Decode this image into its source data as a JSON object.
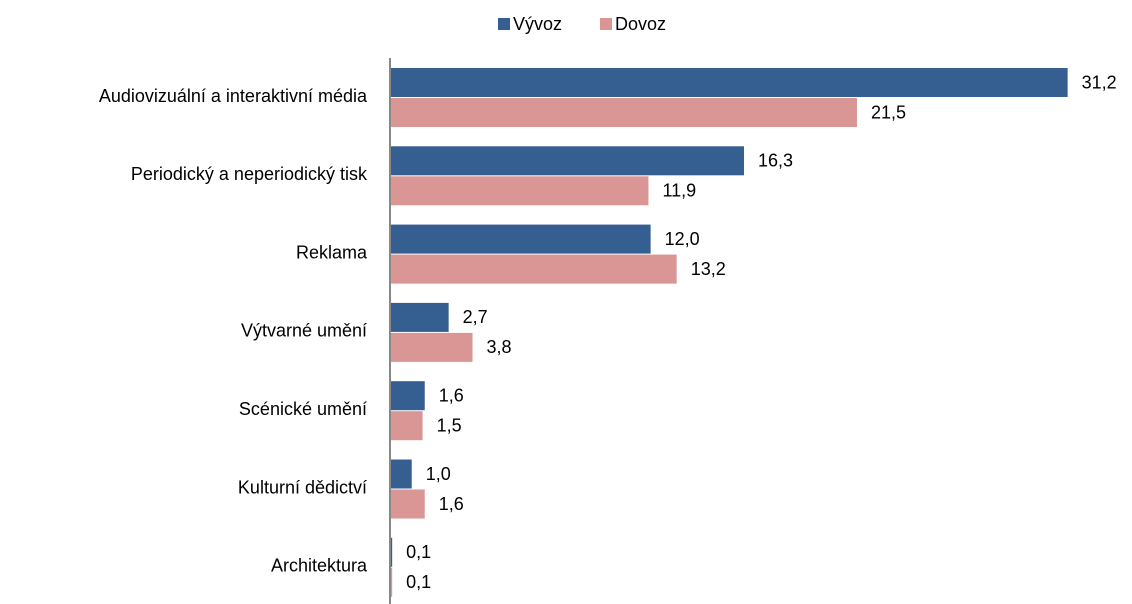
{
  "chart_data": {
    "type": "hbar",
    "categories": [
      "Audiovizuální a interaktivní média",
      "Periodický a neperiodický tisk",
      "Reklama",
      "Výtvarné umění",
      "Scénické umění",
      "Kulturní dědictví",
      "Architektura"
    ],
    "series": [
      {
        "name": "Vývoz",
        "color": "#365f91",
        "values": [
          31.2,
          16.3,
          12.0,
          2.7,
          1.6,
          1.0,
          0.1
        ],
        "value_labels": [
          "31,2",
          "16,3",
          "12,0",
          "2,7",
          "1,6",
          "1,0",
          "0,1"
        ]
      },
      {
        "name": "Dovoz",
        "color": "#d99694",
        "values": [
          21.5,
          11.9,
          13.2,
          3.8,
          1.5,
          1.6,
          0.1
        ],
        "value_labels": [
          "21,5",
          "11,9",
          "13,2",
          "3,8",
          "1,5",
          "1,6",
          "0,1"
        ]
      }
    ],
    "xlim": [
      0,
      32
    ],
    "legend": "top"
  }
}
